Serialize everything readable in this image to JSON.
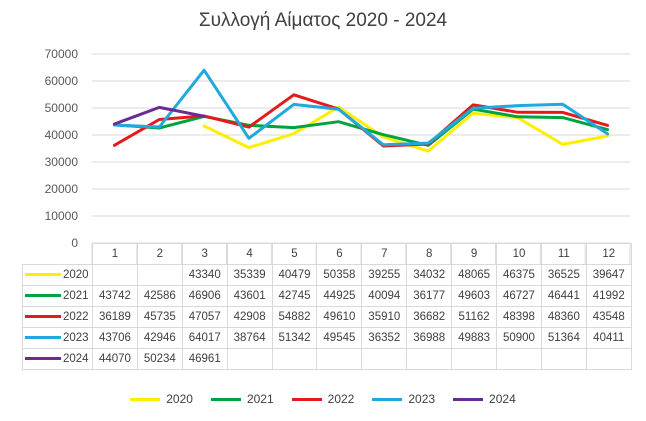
{
  "chart_data": {
    "type": "line",
    "title": "Συλλογή Αίματος 2020 - 2024",
    "categories": [
      "1",
      "2",
      "3",
      "4",
      "5",
      "6",
      "7",
      "8",
      "9",
      "10",
      "11",
      "12"
    ],
    "ylim": [
      0,
      70000
    ],
    "yticks": [
      "0",
      "10000",
      "20000",
      "30000",
      "40000",
      "50000",
      "60000",
      "70000"
    ],
    "grid": true,
    "legend_position": "bottom",
    "series": [
      {
        "name": "2020",
        "color": "#ffee00",
        "values": [
          null,
          null,
          43340,
          35339,
          40479,
          50358,
          39255,
          34032,
          48065,
          46375,
          36525,
          39647
        ]
      },
      {
        "name": "2021",
        "color": "#00a33e",
        "values": [
          43742,
          42586,
          46906,
          43601,
          42745,
          44925,
          40094,
          36177,
          49603,
          46727,
          46441,
          41992
        ]
      },
      {
        "name": "2022",
        "color": "#e31b1b",
        "values": [
          36189,
          45735,
          47057,
          42908,
          54882,
          49610,
          35910,
          36682,
          51162,
          48398,
          48360,
          43548
        ]
      },
      {
        "name": "2023",
        "color": "#1fa9dc",
        "values": [
          43706,
          42946,
          64017,
          38764,
          51342,
          49545,
          36352,
          36988,
          49883,
          50900,
          51364,
          40411
        ]
      },
      {
        "name": "2024",
        "color": "#6a2c91",
        "values": [
          44070,
          50234,
          46961,
          null,
          null,
          null,
          null,
          null,
          null,
          null,
          null,
          null
        ]
      }
    ]
  }
}
